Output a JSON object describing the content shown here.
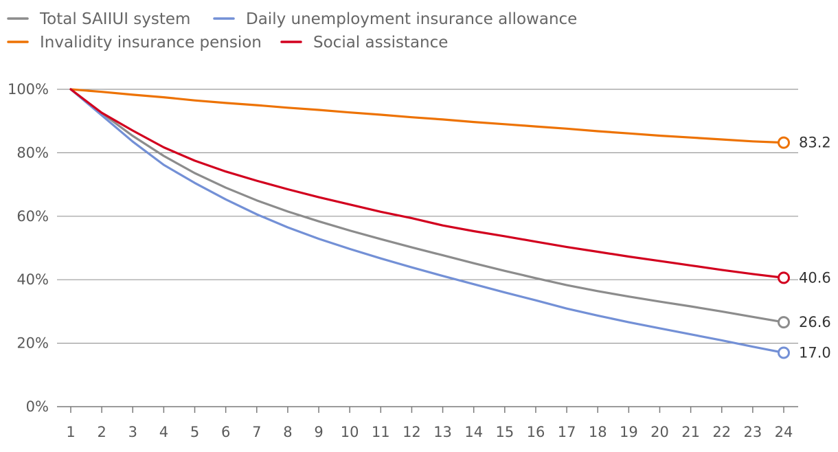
{
  "chart_data": {
    "type": "line",
    "title": "",
    "xlabel": "",
    "ylabel": "",
    "x": [
      1,
      2,
      3,
      4,
      5,
      6,
      7,
      8,
      9,
      10,
      11,
      12,
      13,
      14,
      15,
      16,
      17,
      18,
      19,
      20,
      21,
      22,
      23,
      24
    ],
    "ylim": [
      0,
      100
    ],
    "yticks": [
      0,
      20,
      40,
      60,
      80,
      100
    ],
    "ytick_labels": [
      "0%",
      "20%",
      "40%",
      "60%",
      "80%",
      "100%"
    ],
    "grid": true,
    "legend_position": "top-left",
    "series": [
      {
        "name": "Total SAIIUI system",
        "color": "#8c8c8c",
        "end_label": "26.6",
        "values": [
          100,
          92.5,
          85.3,
          79.0,
          73.6,
          69.0,
          65.0,
          61.5,
          58.4,
          55.5,
          52.8,
          50.2,
          47.7,
          45.2,
          42.8,
          40.5,
          38.3,
          36.4,
          34.7,
          33.1,
          31.6,
          30.0,
          28.3,
          26.6
        ]
      },
      {
        "name": "Daily unemployment insurance allowance",
        "color": "#7390d6",
        "end_label": "17.0",
        "values": [
          100,
          91.8,
          83.5,
          76.2,
          70.5,
          65.3,
          60.6,
          56.5,
          52.9,
          49.7,
          46.7,
          43.9,
          41.2,
          38.6,
          36.0,
          33.5,
          30.9,
          28.7,
          26.6,
          24.7,
          22.8,
          20.9,
          18.9,
          17.0
        ]
      },
      {
        "name": "Invalidity insurance pension",
        "color": "#ed7203",
        "end_label": "83.2",
        "values": [
          100,
          99.2,
          98.3,
          97.5,
          96.5,
          95.7,
          95.0,
          94.2,
          93.5,
          92.7,
          92.0,
          91.2,
          90.5,
          89.7,
          89.0,
          88.3,
          87.6,
          86.8,
          86.1,
          85.4,
          84.8,
          84.2,
          83.6,
          83.2
        ]
      },
      {
        "name": "Social assistance",
        "color": "#d2001e",
        "end_label": "40.6",
        "values": [
          100,
          92.6,
          87.0,
          81.7,
          77.5,
          74.1,
          71.2,
          68.5,
          66.0,
          63.7,
          61.4,
          59.4,
          57.1,
          55.3,
          53.7,
          52.0,
          50.3,
          48.8,
          47.3,
          45.9,
          44.5,
          43.1,
          41.8,
          40.6
        ]
      }
    ]
  }
}
